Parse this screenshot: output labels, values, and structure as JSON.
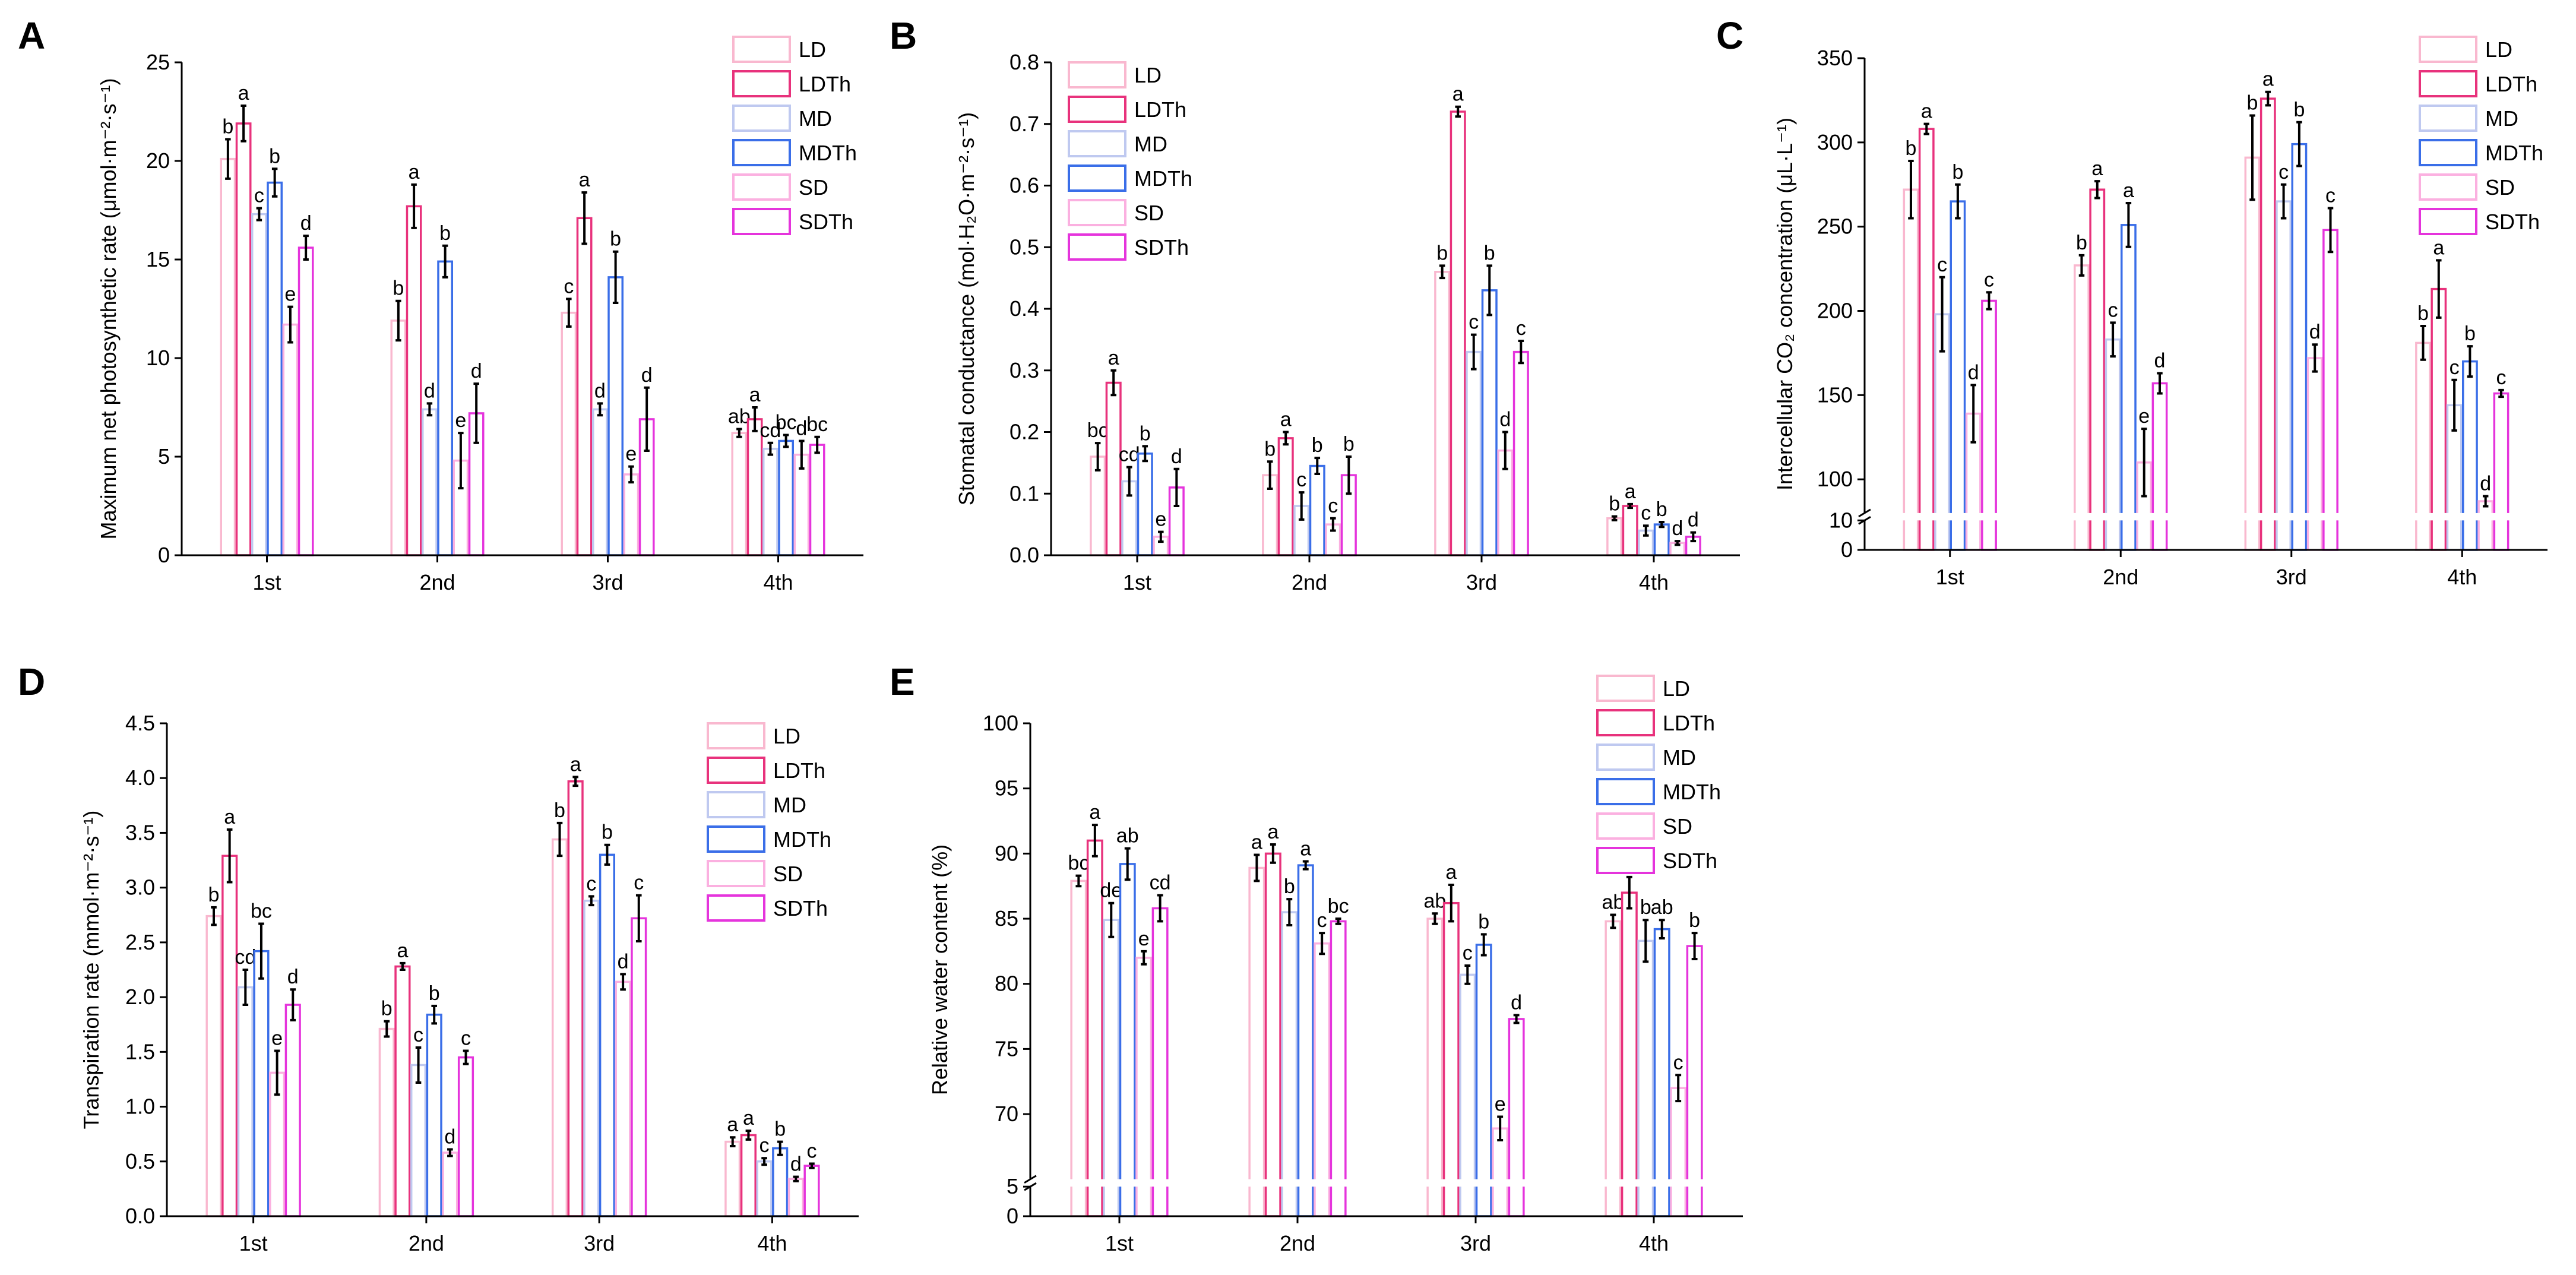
{
  "chart_data": [
    {
      "type": "bar",
      "panel": "A",
      "ylabel": "Maximum net photosynthetic rate (μmol·m⁻²·s⁻¹)",
      "categories": [
        "1st",
        "2nd",
        "3rd",
        "4th"
      ],
      "ylim": [
        0,
        25
      ],
      "yticks": [
        0,
        5,
        10,
        15,
        20,
        25
      ],
      "legend_position": "top-right",
      "series": [
        {
          "name": "LD",
          "values": [
            20.1,
            11.9,
            12.3,
            6.2
          ],
          "errors": [
            1.0,
            1.0,
            0.7,
            0.2
          ],
          "letters": [
            "b",
            "b",
            "c",
            "ab"
          ]
        },
        {
          "name": "LDTh",
          "values": [
            21.9,
            17.7,
            17.1,
            6.9
          ],
          "errors": [
            0.9,
            1.1,
            1.3,
            0.6
          ],
          "letters": [
            "a",
            "a",
            "a",
            "a"
          ]
        },
        {
          "name": "MD",
          "values": [
            17.3,
            7.4,
            7.4,
            5.4
          ],
          "errors": [
            0.3,
            0.3,
            0.3,
            0.3
          ],
          "letters": [
            "c",
            "d",
            "d",
            "cd"
          ]
        },
        {
          "name": "MDTh",
          "values": [
            18.9,
            14.9,
            14.1,
            5.8
          ],
          "errors": [
            0.7,
            0.8,
            1.3,
            0.3
          ],
          "letters": [
            "b",
            "b",
            "b",
            "bc"
          ]
        },
        {
          "name": "SD",
          "values": [
            11.7,
            4.8,
            4.1,
            5.1
          ],
          "errors": [
            0.9,
            1.4,
            0.4,
            0.7
          ],
          "letters": [
            "e",
            "e",
            "e",
            "d"
          ]
        },
        {
          "name": "SDTh",
          "values": [
            15.6,
            7.2,
            6.9,
            5.6
          ],
          "errors": [
            0.6,
            1.5,
            1.6,
            0.4
          ],
          "letters": [
            "d",
            "d",
            "d",
            "bc"
          ]
        }
      ]
    },
    {
      "type": "bar",
      "panel": "B",
      "ylabel": "Stomatal conductance (mol·H₂O·m⁻²·s⁻¹)",
      "categories": [
        "1st",
        "2nd",
        "3rd",
        "4th"
      ],
      "ylim": [
        0,
        0.8
      ],
      "yticks": [
        0.0,
        0.1,
        0.2,
        0.3,
        0.4,
        0.5,
        0.6,
        0.7,
        0.8
      ],
      "tick_decimals": 1,
      "legend_position": "top-center",
      "series": [
        {
          "name": "LD",
          "values": [
            0.16,
            0.13,
            0.46,
            0.06
          ],
          "errors": [
            0.022,
            0.022,
            0.01,
            0.003
          ],
          "letters": [
            "bc",
            "b",
            "b",
            "b"
          ]
        },
        {
          "name": "LDTh",
          "values": [
            0.28,
            0.19,
            0.72,
            0.08
          ],
          "errors": [
            0.02,
            0.01,
            0.008,
            0.003
          ],
          "letters": [
            "a",
            "a",
            "a",
            "a"
          ]
        },
        {
          "name": "MD",
          "values": [
            0.12,
            0.08,
            0.33,
            0.04
          ],
          "errors": [
            0.023,
            0.022,
            0.028,
            0.008
          ],
          "letters": [
            "cd",
            "c",
            "c",
            "c"
          ]
        },
        {
          "name": "MDTh",
          "values": [
            0.165,
            0.145,
            0.43,
            0.05
          ],
          "errors": [
            0.012,
            0.013,
            0.04,
            0.004
          ],
          "letters": [
            "b",
            "b",
            "b",
            "b"
          ]
        },
        {
          "name": "SD",
          "values": [
            0.03,
            0.05,
            0.17,
            0.02
          ],
          "errors": [
            0.008,
            0.01,
            0.03,
            0.003
          ],
          "letters": [
            "e",
            "c",
            "d",
            "d"
          ]
        },
        {
          "name": "SDTh",
          "values": [
            0.11,
            0.13,
            0.33,
            0.03
          ],
          "errors": [
            0.03,
            0.03,
            0.018,
            0.007
          ],
          "letters": [
            "d",
            "b",
            "c",
            "d"
          ]
        }
      ]
    },
    {
      "type": "bar",
      "panel": "C",
      "ylabel": "Intercellular CO₂ concentration (μL·L⁻¹)",
      "categories": [
        "1st",
        "2nd",
        "3rd",
        "4th"
      ],
      "ylim": [
        0,
        350
      ],
      "axis_break": [
        10,
        80
      ],
      "yticks": [
        0,
        10,
        100,
        150,
        200,
        250,
        300,
        350
      ],
      "legend_position": "top-right",
      "series": [
        {
          "name": "LD",
          "values": [
            272,
            227,
            291,
            181
          ],
          "errors": [
            17,
            6,
            25,
            10
          ],
          "letters": [
            "b",
            "b",
            "b",
            "b"
          ]
        },
        {
          "name": "LDTh",
          "values": [
            308,
            272,
            326,
            213
          ],
          "errors": [
            3,
            5,
            4,
            17
          ],
          "letters": [
            "a",
            "a",
            "a",
            "a"
          ]
        },
        {
          "name": "MD",
          "values": [
            198,
            183,
            265,
            144
          ],
          "errors": [
            22,
            10,
            10,
            15
          ],
          "letters": [
            "c",
            "c",
            "c",
            "c"
          ]
        },
        {
          "name": "MDTh",
          "values": [
            265,
            251,
            299,
            170
          ],
          "errors": [
            10,
            13,
            13,
            9
          ],
          "letters": [
            "b",
            "a",
            "b",
            "b"
          ]
        },
        {
          "name": "SD",
          "values": [
            139,
            110,
            172,
            87
          ],
          "errors": [
            17,
            20,
            8,
            3
          ],
          "letters": [
            "d",
            "e",
            "d",
            "d"
          ]
        },
        {
          "name": "SDTh",
          "values": [
            206,
            157,
            248,
            151
          ],
          "errors": [
            5,
            6,
            13,
            2
          ],
          "letters": [
            "c",
            "d",
            "c",
            "c"
          ]
        }
      ]
    },
    {
      "type": "bar",
      "panel": "D",
      "ylabel": "Transpiration rate (mmol·m⁻²·s⁻¹)",
      "categories": [
        "1st",
        "2nd",
        "3rd",
        "4th"
      ],
      "ylim": [
        0,
        4.5
      ],
      "yticks": [
        0.0,
        0.5,
        1.0,
        1.5,
        2.0,
        2.5,
        3.0,
        3.5,
        4.0,
        4.5
      ],
      "tick_decimals": 1,
      "legend_position": "top-right",
      "series": [
        {
          "name": "LD",
          "values": [
            2.74,
            1.71,
            3.44,
            0.68
          ],
          "errors": [
            0.08,
            0.07,
            0.15,
            0.04
          ],
          "letters": [
            "b",
            "b",
            "b",
            "a"
          ]
        },
        {
          "name": "LDTh",
          "values": [
            3.29,
            2.28,
            3.97,
            0.74
          ],
          "errors": [
            0.24,
            0.03,
            0.04,
            0.04
          ],
          "letters": [
            "a",
            "a",
            "a",
            "a"
          ]
        },
        {
          "name": "MD",
          "values": [
            2.09,
            1.38,
            2.88,
            0.5
          ],
          "errors": [
            0.16,
            0.16,
            0.04,
            0.03
          ],
          "letters": [
            "cd",
            "c",
            "c",
            "c"
          ]
        },
        {
          "name": "MDTh",
          "values": [
            2.42,
            1.84,
            3.3,
            0.62
          ],
          "errors": [
            0.25,
            0.08,
            0.09,
            0.06
          ],
          "letters": [
            "bc",
            "b",
            "b",
            "b"
          ]
        },
        {
          "name": "SD",
          "values": [
            1.31,
            0.58,
            2.14,
            0.34
          ],
          "errors": [
            0.2,
            0.03,
            0.07,
            0.02
          ],
          "letters": [
            "e",
            "d",
            "d",
            "d"
          ]
        },
        {
          "name": "SDTh",
          "values": [
            1.93,
            1.45,
            2.72,
            0.46
          ],
          "errors": [
            0.14,
            0.06,
            0.21,
            0.02
          ],
          "letters": [
            "d",
            "c",
            "c",
            "c"
          ]
        }
      ]
    },
    {
      "type": "bar",
      "panel": "E",
      "ylabel": "Relative water content (%)",
      "categories": [
        "1st",
        "2nd",
        "3rd",
        "4th"
      ],
      "ylim": [
        0,
        100
      ],
      "axis_break": [
        5,
        65
      ],
      "yticks": [
        0,
        5,
        70,
        75,
        80,
        85,
        90,
        95,
        100
      ],
      "legend_position": "top-right",
      "series": [
        {
          "name": "LD",
          "values": [
            87.9,
            88.9,
            85.0,
            84.8
          ],
          "errors": [
            0.4,
            1.0,
            0.4,
            0.5
          ],
          "letters": [
            "bc",
            "a",
            "ab",
            "ab"
          ]
        },
        {
          "name": "LDTh",
          "values": [
            91.0,
            90.0,
            86.2,
            87.0
          ],
          "errors": [
            1.2,
            0.7,
            1.4,
            1.2
          ],
          "letters": [
            "a",
            "a",
            "a",
            "a"
          ]
        },
        {
          "name": "MD",
          "values": [
            84.9,
            85.5,
            80.7,
            83.3
          ],
          "errors": [
            1.3,
            1.0,
            0.7,
            1.6
          ],
          "letters": [
            "de",
            "b",
            "c",
            "b"
          ]
        },
        {
          "name": "MDTh",
          "values": [
            89.2,
            89.1,
            83.0,
            84.2
          ],
          "errors": [
            1.2,
            0.3,
            0.8,
            0.7
          ],
          "letters": [
            "ab",
            "a",
            "b",
            "ab"
          ]
        },
        {
          "name": "SD",
          "values": [
            82.0,
            83.1,
            68.9,
            72.0
          ],
          "errors": [
            0.5,
            0.8,
            0.9,
            1.0
          ],
          "letters": [
            "e",
            "c",
            "e",
            "c"
          ]
        },
        {
          "name": "SDTh",
          "values": [
            85.8,
            84.8,
            77.3,
            82.9
          ],
          "errors": [
            1.0,
            0.2,
            0.3,
            1.0
          ],
          "letters": [
            "cd",
            "bc",
            "d",
            "b"
          ]
        }
      ]
    }
  ],
  "style": {
    "series_colors": [
      "#f9b8cf",
      "#e8327c",
      "#bfc9f0",
      "#3a6ee8",
      "#fbb0e0",
      "#e534dc"
    ],
    "axis_color": "#000000",
    "background": "#ffffff"
  }
}
